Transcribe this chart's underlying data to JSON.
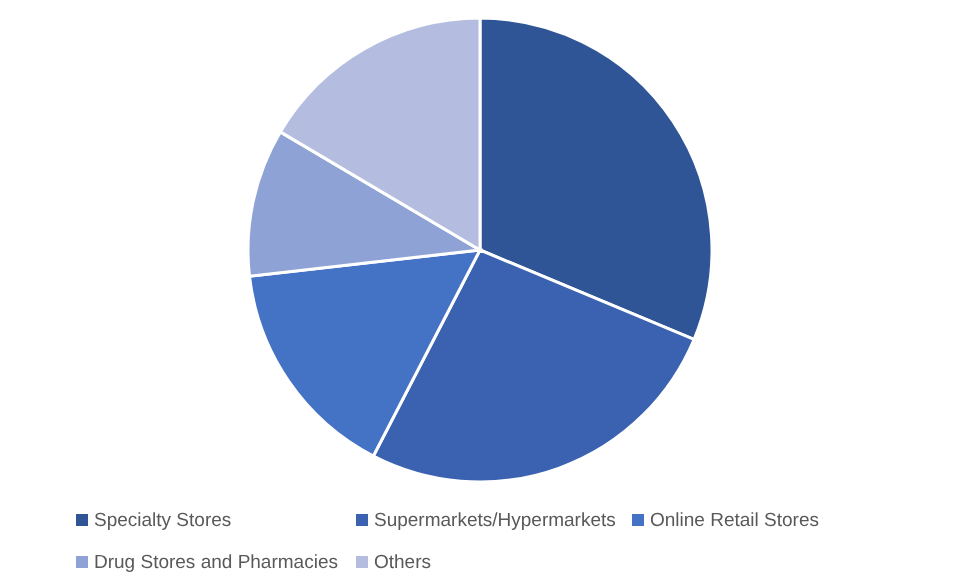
{
  "chart_data": {
    "type": "pie",
    "categories": [
      "Specialty Stores",
      "Supermarkets/Hypermarkets",
      "Online Retail Stores",
      "Drug Stores and Pharmacies",
      "Others"
    ],
    "values": [
      31.3,
      26.3,
      15.6,
      10.3,
      16.5
    ],
    "colors": [
      "#2f5597",
      "#3a62b0",
      "#4472c4",
      "#8ea2d6",
      "#b4bde0"
    ],
    "legend": "bottom"
  }
}
